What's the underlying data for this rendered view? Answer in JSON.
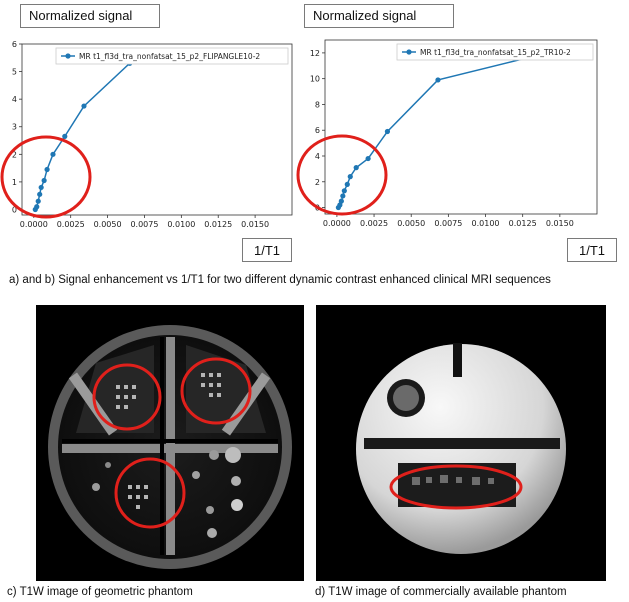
{
  "figure": {
    "labels": {
      "ylabel_a": "Normalized signal",
      "ylabel_b": "Normalized signal",
      "xlabel_a": "1/T1",
      "xlabel_b": "1/T1"
    },
    "captions": {
      "ab": "a) and b) Signal enhancement vs 1/T1 for two different dynamic contrast enhanced clinical MRI sequences",
      "c": "c)  T1W image of geometric phantom",
      "d": "d)  T1W image of commercially available phantom"
    },
    "colors": {
      "series": "#1f77b4",
      "highlight": "#e0201b"
    }
  },
  "chart_data": [
    {
      "type": "line",
      "ylabel": "Normalized signal",
      "xlabel": "1/T1",
      "xlim": [
        -0.0008,
        0.0175
      ],
      "ylim": [
        -0.2,
        6
      ],
      "xticks": [
        "0.0000",
        "0.0025",
        "0.0050",
        "0.0075",
        "0.0100",
        "0.0125",
        "0.0150"
      ],
      "yticks": [
        "0",
        "1",
        "2",
        "3",
        "4",
        "5",
        "6"
      ],
      "legend_position": "top-right",
      "series": [
        {
          "name": "MR t1_fl3d_tra_nonfatsat_15_p2_FLIPANGLE10-2",
          "x": [
            0.0001,
            0.0002,
            0.0003,
            0.0004,
            0.0005,
            0.0007,
            0.0009,
            0.0013,
            0.0021,
            0.0034,
            0.0065
          ],
          "y": [
            0.0,
            0.1,
            0.3,
            0.55,
            0.8,
            1.05,
            1.45,
            2.0,
            2.65,
            3.75,
            5.3
          ]
        }
      ],
      "highlight": "red ellipse around low 1/T1 region"
    },
    {
      "type": "line",
      "ylabel": "Normalized signal",
      "xlabel": "1/T1",
      "xlim": [
        -0.0008,
        0.0175
      ],
      "ylim": [
        -0.5,
        13
      ],
      "xticks": [
        "0.0000",
        "0.0025",
        "0.0050",
        "0.0075",
        "0.0100",
        "0.0125",
        "0.0150"
      ],
      "yticks": [
        "0",
        "2",
        "4",
        "6",
        "8",
        "10",
        "12"
      ],
      "legend_position": "top-right",
      "series": [
        {
          "name": "MR t1_fl3d_tra_nonfatsat_15_p2_TR10-2",
          "x": [
            0.0001,
            0.0002,
            0.0003,
            0.0004,
            0.0005,
            0.0007,
            0.0009,
            0.0013,
            0.0021,
            0.0034,
            0.0068,
            0.0131
          ],
          "y": [
            0.0,
            0.2,
            0.5,
            0.9,
            1.3,
            1.8,
            2.4,
            3.1,
            3.8,
            5.9,
            9.9,
            11.7
          ]
        }
      ],
      "highlight": "red ellipse around low 1/T1 region"
    }
  ]
}
